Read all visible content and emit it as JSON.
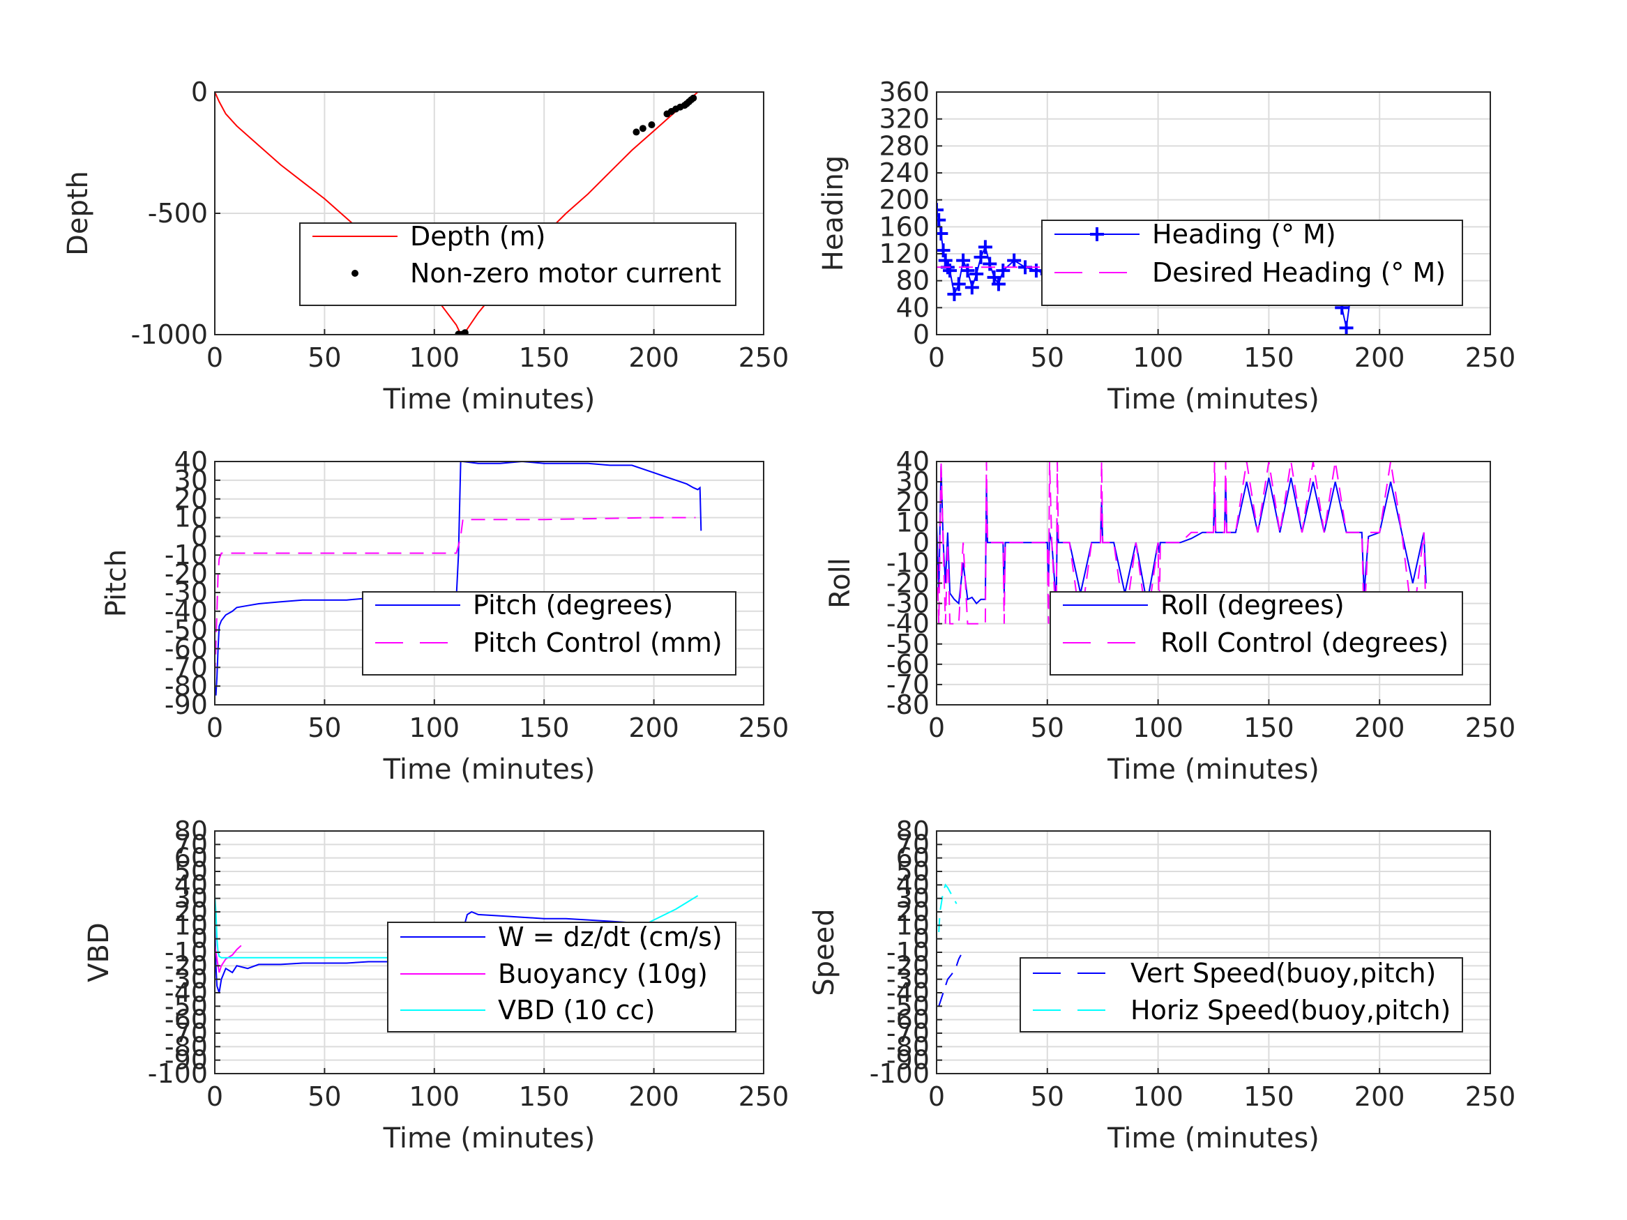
{
  "figure": {
    "background": "#ffffff"
  },
  "chart_data": [
    {
      "id": "depth",
      "type": "line",
      "xlabel": "Time (minutes)",
      "ylabel": "Depth",
      "xlim": [
        0,
        250
      ],
      "ylim": [
        -1000,
        0
      ],
      "xticks": [
        0,
        50,
        100,
        150,
        200,
        250
      ],
      "yticks": [
        -1000,
        -500,
        0
      ],
      "grid": true,
      "legend_position": "center-right",
      "series": [
        {
          "name": "Depth (m)",
          "color": "#ff0000",
          "style": "solid",
          "x": [
            0,
            2,
            5,
            10,
            20,
            30,
            40,
            50,
            60,
            70,
            80,
            90,
            100,
            105,
            110,
            112,
            114,
            120,
            130,
            140,
            150,
            160,
            170,
            180,
            190,
            200,
            210,
            220
          ],
          "y": [
            0,
            -40,
            -90,
            -140,
            -220,
            -300,
            -370,
            -440,
            -520,
            -600,
            -680,
            -760,
            -840,
            -900,
            -960,
            -998,
            -990,
            -910,
            -800,
            -690,
            -590,
            -500,
            -420,
            -330,
            -240,
            -160,
            -80,
            0
          ]
        },
        {
          "name": "Non-zero motor current",
          "color": "#000000",
          "style": "dots",
          "x": [
            111,
            112,
            113,
            114,
            192,
            195,
            199,
            206,
            208,
            210,
            212,
            214,
            215,
            216,
            217,
            218
          ],
          "y": [
            -998,
            -1000,
            -998,
            -992,
            -165,
            -150,
            -135,
            -90,
            -80,
            -70,
            -62,
            -55,
            -48,
            -40,
            -32,
            -25
          ]
        }
      ]
    },
    {
      "id": "heading",
      "type": "line",
      "xlabel": "Time (minutes)",
      "ylabel": "Heading",
      "xlim": [
        0,
        250
      ],
      "ylim": [
        0,
        360
      ],
      "xticks": [
        0,
        50,
        100,
        150,
        200,
        250
      ],
      "yticks": [
        0,
        40,
        80,
        120,
        160,
        200,
        240,
        280,
        320,
        360
      ],
      "grid": true,
      "legend_position": "center-right",
      "series": [
        {
          "name": "Heading (° M)",
          "color": "#0000ff",
          "style": "plus",
          "x": [
            0,
            1,
            2,
            3,
            4,
            5,
            6,
            8,
            10,
            12,
            14,
            16,
            18,
            20,
            22,
            24,
            26,
            28,
            30,
            35,
            40,
            45,
            50,
            55,
            60,
            65,
            70,
            72,
            75,
            80,
            85,
            90,
            95,
            100,
            105,
            110,
            115,
            120,
            125,
            130,
            135,
            140,
            145,
            150,
            155,
            160,
            165,
            170,
            175,
            180,
            183,
            185,
            187,
            190,
            193,
            195,
            197,
            200,
            202,
            205,
            208,
            210,
            215,
            220
          ],
          "y": [
            185,
            170,
            150,
            125,
            110,
            100,
            95,
            60,
            75,
            110,
            95,
            70,
            90,
            115,
            130,
            105,
            85,
            75,
            95,
            110,
            100,
            95,
            90,
            105,
            100,
            85,
            110,
            135,
            100,
            85,
            95,
            90,
            100,
            105,
            95,
            100,
            110,
            95,
            100,
            105,
            95,
            90,
            100,
            85,
            95,
            105,
            90,
            100,
            70,
            95,
            40,
            10,
            60,
            110,
            95,
            120,
            90,
            160,
            105,
            80,
            130,
            95,
            110,
            110
          ]
        },
        {
          "name": "Desired Heading (° M)",
          "color": "#ff00ff",
          "style": "dashed",
          "x": [
            0,
            50,
            50,
            95,
            95,
            120,
            120,
            222
          ],
          "y": [
            100,
            100,
            80,
            80,
            100,
            100,
            100,
            100
          ]
        }
      ]
    },
    {
      "id": "pitch",
      "type": "line",
      "xlabel": "Time (minutes)",
      "ylabel": "Pitch",
      "xlim": [
        0,
        250
      ],
      "ylim": [
        -90,
        40
      ],
      "xticks": [
        0,
        50,
        100,
        150,
        200,
        250
      ],
      "yticks": [
        -90,
        -80,
        -70,
        -60,
        -50,
        -40,
        -30,
        -20,
        -10,
        0,
        10,
        20,
        30,
        40
      ],
      "grid": true,
      "legend_position": "center-right",
      "series": [
        {
          "name": "Pitch (degrees)",
          "color": "#0000ff",
          "style": "solid",
          "x": [
            0,
            0.5,
            1,
            1.5,
            2,
            3,
            5,
            8,
            10,
            15,
            20,
            30,
            40,
            50,
            60,
            70,
            80,
            90,
            100,
            105,
            110,
            111,
            112,
            113,
            120,
            130,
            140,
            150,
            160,
            170,
            180,
            190,
            200,
            205,
            210,
            215,
            218,
            220,
            221,
            221.5
          ],
          "y": [
            -80,
            -85,
            -75,
            -60,
            -48,
            -45,
            -42,
            -40,
            -38,
            -37,
            -36,
            -35,
            -34,
            -34,
            -34,
            -33,
            -33,
            -33,
            -33,
            -33,
            -33,
            -10,
            40,
            40,
            39,
            39,
            40,
            39,
            39,
            39,
            38,
            38,
            34,
            32,
            30,
            28,
            26,
            25,
            26,
            3
          ]
        },
        {
          "name": "Pitch Control (mm)",
          "color": "#ff00ff",
          "style": "dashed",
          "x": [
            0,
            1,
            1.5,
            2,
            3,
            20,
            50,
            100,
            110,
            111,
            112,
            113,
            150,
            200,
            219
          ],
          "y": [
            -75,
            -40,
            -20,
            -12,
            -9,
            -9,
            -9,
            -9,
            -9,
            -5,
            0,
            9,
            9,
            10,
            10
          ]
        }
      ]
    },
    {
      "id": "roll",
      "type": "line",
      "xlabel": "Time (minutes)",
      "ylabel": "Roll",
      "xlim": [
        0,
        250
      ],
      "ylim": [
        -80,
        40
      ],
      "xticks": [
        0,
        50,
        100,
        150,
        200,
        250
      ],
      "yticks": [
        -80,
        -70,
        -60,
        -50,
        -40,
        -30,
        -20,
        -10,
        0,
        10,
        20,
        30,
        40
      ],
      "grid": true,
      "legend_position": "center-right",
      "series": [
        {
          "name": "Roll (degrees)",
          "color": "#0000ff",
          "style": "solid",
          "x": [
            0,
            1,
            2,
            3,
            4,
            5,
            6,
            8,
            10,
            12,
            14,
            16,
            18,
            20,
            22,
            22.5,
            23,
            24,
            26,
            28,
            30,
            30.5,
            31,
            34,
            40,
            45,
            50,
            50.5,
            51,
            52,
            54,
            54.5,
            55,
            60,
            65,
            70,
            74,
            74.5,
            75,
            80,
            85,
            90,
            95,
            100,
            100.5,
            101,
            105,
            110,
            115,
            120,
            125,
            125.5,
            126,
            130,
            130.5,
            131,
            135,
            140,
            145,
            150,
            155,
            160,
            165,
            170,
            175,
            180,
            185,
            190,
            192,
            193,
            195,
            200,
            205,
            210,
            215,
            220,
            221
          ],
          "y": [
            10,
            -25,
            38,
            0,
            -20,
            5,
            -25,
            -28,
            -30,
            -10,
            -28,
            -27,
            -30,
            -28,
            -28,
            28,
            0,
            0,
            0,
            0,
            0,
            -25,
            0,
            0,
            0,
            0,
            0,
            -20,
            5,
            0,
            -30,
            10,
            0,
            0,
            -25,
            0,
            0,
            20,
            0,
            0,
            -25,
            0,
            -30,
            0,
            -5,
            0,
            0,
            0,
            2,
            5,
            5,
            25,
            5,
            5,
            30,
            5,
            5,
            30,
            5,
            32,
            5,
            32,
            5,
            30,
            5,
            30,
            5,
            5,
            5,
            -25,
            3,
            5,
            30,
            5,
            -20,
            5,
            -20
          ]
        },
        {
          "name": "Roll Control (degrees)",
          "color": "#ff00ff",
          "style": "dashed",
          "x": [
            0,
            1,
            2,
            3,
            4,
            5,
            6,
            8,
            10,
            12,
            14,
            16,
            18,
            20,
            22,
            22.5,
            23,
            24,
            26,
            28,
            30,
            30.5,
            31,
            34,
            40,
            45,
            50,
            50.5,
            51,
            52,
            54,
            54.5,
            55,
            60,
            65,
            70,
            74,
            74.5,
            75,
            80,
            85,
            90,
            95,
            100,
            100.5,
            101,
            105,
            110,
            115,
            120,
            125,
            125.5,
            126,
            130,
            130.5,
            131,
            135,
            140,
            145,
            150,
            155,
            160,
            165,
            170,
            175,
            180,
            185,
            190,
            192,
            193,
            195,
            200,
            205,
            210,
            215,
            220,
            221
          ],
          "y": [
            0,
            -40,
            40,
            0,
            -40,
            0,
            -40,
            -40,
            -40,
            0,
            -40,
            -40,
            -40,
            -40,
            -40,
            40,
            0,
            0,
            0,
            0,
            0,
            -40,
            0,
            0,
            0,
            0,
            0,
            -40,
            40,
            0,
            -40,
            40,
            0,
            0,
            -40,
            0,
            0,
            40,
            0,
            0,
            -40,
            0,
            -40,
            0,
            -40,
            0,
            0,
            0,
            5,
            5,
            5,
            40,
            5,
            5,
            40,
            5,
            5,
            40,
            5,
            40,
            5,
            40,
            5,
            40,
            5,
            40,
            5,
            5,
            5,
            -40,
            5,
            5,
            40,
            5,
            -40,
            5,
            -40
          ]
        }
      ]
    },
    {
      "id": "vbd",
      "type": "line",
      "xlabel": "Time (minutes)",
      "ylabel": "VBD",
      "xlim": [
        0,
        250
      ],
      "ylim": [
        -100,
        80
      ],
      "xticks": [
        0,
        50,
        100,
        150,
        200,
        250
      ],
      "yticks": [
        -100,
        -90,
        -80,
        -70,
        -60,
        -50,
        -40,
        -30,
        -20,
        -10,
        0,
        10,
        20,
        30,
        40,
        50,
        60,
        70,
        80
      ],
      "grid": true,
      "legend_position": "center-right",
      "series": [
        {
          "name": "W = dz/dt (cm/s)",
          "color": "#0000ff",
          "style": "solid",
          "x": [
            0,
            0.5,
            1,
            2,
            3,
            5,
            8,
            10,
            15,
            20,
            30,
            40,
            50,
            60,
            70,
            80,
            90,
            100,
            108,
            110,
            112,
            115,
            117,
            120,
            130,
            140,
            150,
            160,
            170,
            180,
            190,
            200,
            210,
            218,
            220,
            221
          ],
          "y": [
            10,
            -20,
            -35,
            -40,
            -30,
            -22,
            -25,
            -20,
            -22,
            -19,
            -19,
            -18,
            -18,
            -18,
            -17,
            -17,
            -17,
            -17,
            -17,
            -15,
            0,
            18,
            20,
            18,
            17,
            16,
            15,
            15,
            14,
            13,
            12,
            12,
            10,
            9,
            10,
            2
          ]
        },
        {
          "name": "Buoyancy (10g)",
          "color": "#ff00ff",
          "style": "solid",
          "x": [
            0,
            1,
            2,
            3,
            5,
            8,
            10,
            12
          ],
          "y": [
            -5,
            -15,
            -25,
            -20,
            -15,
            -12,
            -8,
            -5
          ]
        },
        {
          "name": "VBD (10 cc)",
          "color": "#00ffff",
          "style": "solid",
          "x": [
            0,
            0.5,
            1,
            1.5,
            2,
            3,
            5,
            20,
            50,
            100,
            110,
            112,
            113,
            150,
            190,
            195,
            200,
            205,
            210,
            215,
            220
          ],
          "y": [
            32,
            20,
            0,
            -10,
            -13,
            -14,
            -14,
            -14,
            -14,
            -14,
            -14,
            0,
            9,
            9,
            9,
            10,
            14,
            18,
            22,
            27,
            32
          ]
        }
      ]
    },
    {
      "id": "speed",
      "type": "line",
      "xlabel": "Time (minutes)",
      "ylabel": "Speed",
      "xlim": [
        0,
        250
      ],
      "ylim": [
        -100,
        80
      ],
      "xticks": [
        0,
        50,
        100,
        150,
        200,
        250
      ],
      "yticks": [
        -100,
        -90,
        -80,
        -70,
        -60,
        -50,
        -40,
        -30,
        -20,
        -10,
        0,
        10,
        20,
        30,
        40,
        50,
        60,
        70,
        80
      ],
      "grid": true,
      "legend_position": "center-right",
      "series": [
        {
          "name": "Vert Speed(buoy,pitch)",
          "color": "#0000ff",
          "style": "dashed",
          "x": [
            1,
            2,
            3,
            4,
            5,
            6,
            7,
            8,
            9,
            10,
            11
          ],
          "y": [
            -50,
            -45,
            -40,
            -35,
            -30,
            -28,
            -26,
            -22,
            -20,
            -15,
            -12
          ]
        },
        {
          "name": "Horiz Speed(buoy,pitch)",
          "color": "#00ffff",
          "style": "dashed",
          "x": [
            1,
            1.5,
            2,
            3,
            4,
            5,
            6,
            7,
            8,
            9
          ],
          "y": [
            5,
            20,
            25,
            35,
            40,
            38,
            35,
            32,
            29,
            26
          ]
        }
      ]
    }
  ]
}
